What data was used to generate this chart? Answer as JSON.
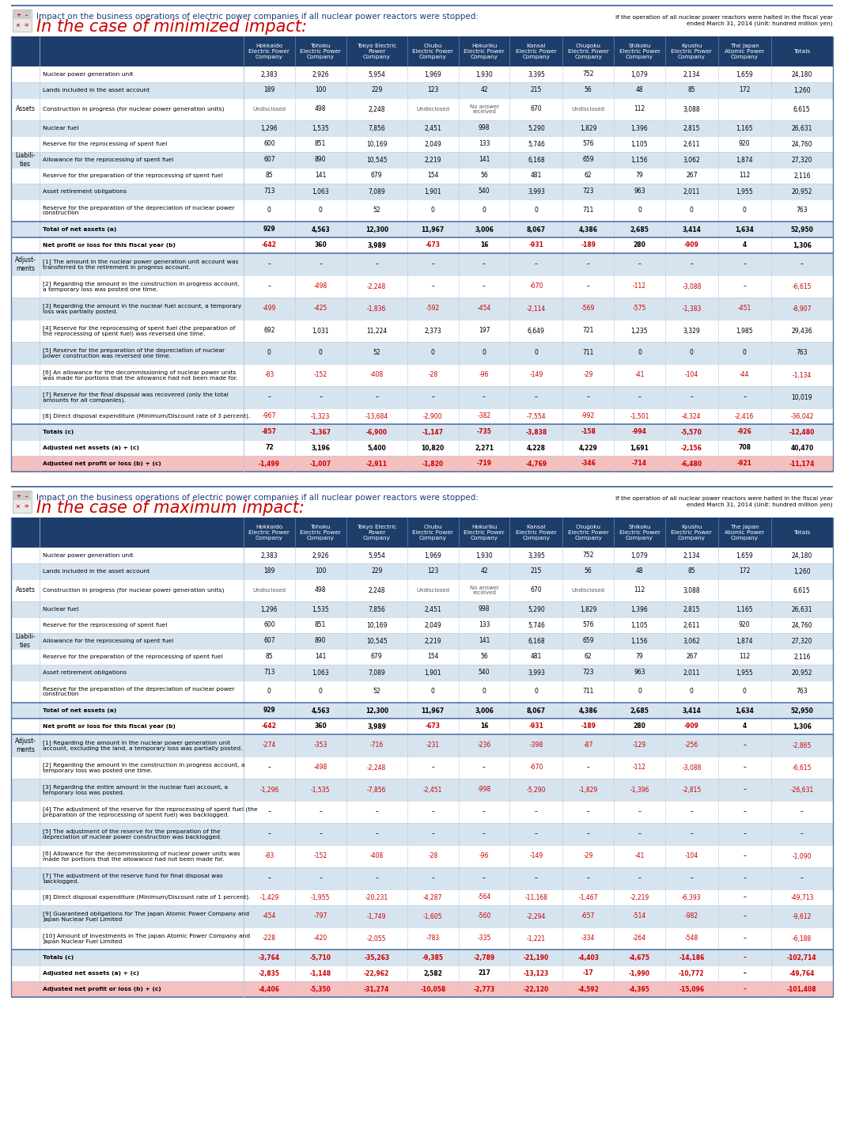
{
  "title_line1": "Impact on the business operations of electric power companies if all nuclear power reactors were stopped:",
  "subtitle_min": "In the case of minimized impact:",
  "subtitle_max": "In the case of maximum impact:",
  "subtitle_note": "If the operation of all nuclear power reactors were halted in the fiscal year\nended March 31, 2014 (Unit: hundred million yen)",
  "col_headers": [
    "Hokkaido\nElectric Power\nCompany",
    "Tohoku\nElectric Power\nCompany",
    "Tokyo Electric\nPower\nCompany",
    "Chubu\nElectric Power\nCompany",
    "Hokuriku\nElectric Power\nCompany",
    "Kansai\nElectric Power\nCompany",
    "Chugoku\nElectric Power\nCompany",
    "Shikoku\nElectric Power\nCompany",
    "Kyushu\nElectric Power\nCompany",
    "The Japan\nAtomic Power\nCompany",
    "Totals"
  ],
  "header_bg": "#1d3d6b",
  "header_text": "#ffffff",
  "alt_row_bg": "#d6e4f0",
  "normal_row_bg": "#ffffff",
  "red_color": "#cc0000",
  "highlight_bg": "#f5c0c0",
  "title_color": "#1a3a7a",
  "subtitle_color": "#cc0000",
  "border_dark": "#5577aa",
  "border_light": "#bbccdd"
}
